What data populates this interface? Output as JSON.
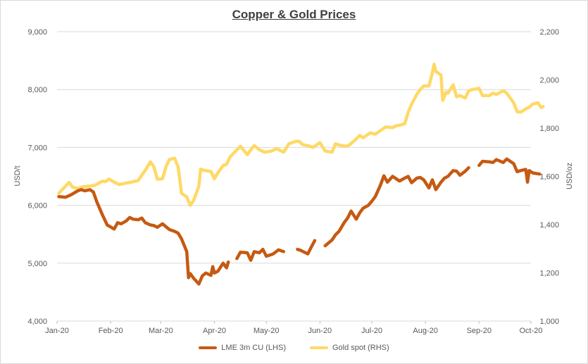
{
  "chart_data": {
    "type": "line",
    "title": "Copper & Gold Prices",
    "ylabel_left": "USD/t",
    "ylabel_right": "USD/oz",
    "ylim_left": [
      4000,
      9000
    ],
    "ylim_right": [
      1000,
      2200
    ],
    "yticks_left": [
      "4,000",
      "5,000",
      "6,000",
      "7,000",
      "8,000",
      "9,000"
    ],
    "yticks_right": [
      "1,000",
      "1,200",
      "1,400",
      "1,600",
      "1,800",
      "2,000",
      "2,200"
    ],
    "xticks": [
      "Jan-20",
      "Feb-20",
      "Mar-20",
      "Apr-20",
      "May-20",
      "Jun-20",
      "Jul-20",
      "Aug-20",
      "Sep-20",
      "Oct-20"
    ],
    "grid": true,
    "legend_position": "bottom",
    "series": [
      {
        "name": "LME 3m CU (LHS)",
        "axis": "left",
        "color": "#c55a11",
        "points": [
          [
            "2020-01-02",
            6150
          ],
          [
            "2020-01-06",
            6140
          ],
          [
            "2020-01-09",
            6180
          ],
          [
            "2020-01-13",
            6250
          ],
          [
            "2020-01-15",
            6270
          ],
          [
            "2020-01-17",
            6250
          ],
          [
            "2020-01-20",
            6270
          ],
          [
            "2020-01-22",
            6230
          ],
          [
            "2020-01-24",
            6060
          ],
          [
            "2020-01-27",
            5850
          ],
          [
            "2020-01-30",
            5660
          ],
          [
            "2020-02-03",
            5590
          ],
          [
            "2020-02-05",
            5700
          ],
          [
            "2020-02-07",
            5680
          ],
          [
            "2020-02-10",
            5730
          ],
          [
            "2020-02-12",
            5790
          ],
          [
            "2020-02-14",
            5760
          ],
          [
            "2020-02-17",
            5750
          ],
          [
            "2020-02-19",
            5780
          ],
          [
            "2020-02-21",
            5700
          ],
          [
            "2020-02-24",
            5660
          ],
          [
            "2020-02-26",
            5650
          ],
          [
            "2020-02-28",
            5620
          ],
          [
            "2020-03-02",
            5680
          ],
          [
            "2020-03-04",
            5630
          ],
          [
            "2020-03-06",
            5580
          ],
          [
            "2020-03-09",
            5550
          ],
          [
            "2020-03-11",
            5520
          ],
          [
            "2020-03-13",
            5420
          ],
          [
            "2020-03-16",
            5200
          ],
          [
            "2020-03-17",
            4750
          ],
          [
            "2020-03-18",
            4820
          ],
          [
            "2020-03-20",
            4740
          ],
          [
            "2020-03-23",
            4640
          ],
          [
            "2020-03-25",
            4780
          ],
          [
            "2020-03-27",
            4830
          ],
          [
            "2020-03-30",
            4790
          ],
          [
            "2020-03-31",
            4940
          ],
          [
            "2020-04-01",
            4830
          ],
          [
            "2020-04-03",
            4860
          ],
          [
            "2020-04-06",
            5000
          ],
          [
            "2020-04-08",
            4920
          ],
          [
            "2020-04-09",
            5020
          ],
          [
            null,
            null
          ],
          [
            "2020-04-14",
            5080
          ],
          [
            "2020-04-16",
            5190
          ],
          [
            "2020-04-20",
            5180
          ],
          [
            "2020-04-22",
            5050
          ],
          [
            "2020-04-24",
            5200
          ],
          [
            "2020-04-27",
            5180
          ],
          [
            "2020-04-29",
            5240
          ],
          [
            "2020-05-01",
            5120
          ],
          [
            "2020-05-05",
            5160
          ],
          [
            "2020-05-08",
            5230
          ],
          [
            "2020-05-11",
            5200
          ],
          [
            null,
            null
          ],
          [
            "2020-05-19",
            5240
          ],
          [
            "2020-05-21",
            5220
          ],
          [
            "2020-05-25",
            5160
          ],
          [
            "2020-05-27",
            5280
          ],
          [
            "2020-05-29",
            5390
          ],
          [
            null,
            null
          ],
          [
            "2020-06-04",
            5300
          ],
          [
            "2020-06-08",
            5400
          ],
          [
            "2020-06-10",
            5490
          ],
          [
            "2020-06-12",
            5550
          ],
          [
            "2020-06-15",
            5700
          ],
          [
            "2020-06-17",
            5780
          ],
          [
            "2020-06-19",
            5900
          ],
          [
            "2020-06-22",
            5760
          ],
          [
            "2020-06-24",
            5870
          ],
          [
            "2020-06-26",
            5950
          ],
          [
            "2020-06-29",
            6000
          ],
          [
            "2020-07-01",
            6070
          ],
          [
            "2020-07-03",
            6150
          ],
          [
            "2020-07-06",
            6350
          ],
          [
            "2020-07-08",
            6510
          ],
          [
            "2020-07-10",
            6400
          ],
          [
            "2020-07-13",
            6500
          ],
          [
            "2020-07-15",
            6460
          ],
          [
            "2020-07-17",
            6420
          ],
          [
            "2020-07-20",
            6470
          ],
          [
            "2020-07-22",
            6500
          ],
          [
            "2020-07-24",
            6390
          ],
          [
            "2020-07-27",
            6470
          ],
          [
            "2020-07-29",
            6480
          ],
          [
            "2020-07-31",
            6440
          ],
          [
            "2020-08-03",
            6300
          ],
          [
            "2020-08-05",
            6440
          ],
          [
            "2020-08-07",
            6270
          ],
          [
            "2020-08-10",
            6400
          ],
          [
            "2020-08-12",
            6470
          ],
          [
            "2020-08-14",
            6500
          ],
          [
            "2020-08-17",
            6600
          ],
          [
            "2020-08-19",
            6590
          ],
          [
            "2020-08-21",
            6520
          ],
          [
            "2020-08-24",
            6590
          ],
          [
            "2020-08-26",
            6650
          ],
          [
            null,
            null
          ],
          [
            "2020-09-01",
            6690
          ],
          [
            "2020-09-03",
            6760
          ],
          [
            "2020-09-07",
            6750
          ],
          [
            "2020-09-09",
            6740
          ],
          [
            "2020-09-11",
            6790
          ],
          [
            "2020-09-15",
            6740
          ],
          [
            "2020-09-17",
            6800
          ],
          [
            "2020-09-21",
            6720
          ],
          [
            "2020-09-23",
            6580
          ],
          [
            "2020-09-25",
            6600
          ],
          [
            "2020-09-28",
            6620
          ],
          [
            "2020-09-29",
            6400
          ],
          [
            "2020-09-30",
            6600
          ],
          [
            "2020-10-02",
            6560
          ],
          [
            "2020-10-06",
            6540
          ]
        ]
      },
      {
        "name": "Gold spot (RHS)",
        "axis": "right",
        "color": "#ffd966",
        "points": [
          [
            "2020-01-02",
            1530
          ],
          [
            "2020-01-06",
            1560
          ],
          [
            "2020-01-08",
            1575
          ],
          [
            "2020-01-10",
            1555
          ],
          [
            "2020-01-13",
            1550
          ],
          [
            "2020-01-16",
            1557
          ],
          [
            "2020-01-20",
            1560
          ],
          [
            "2020-01-23",
            1563
          ],
          [
            "2020-01-27",
            1580
          ],
          [
            "2020-01-29",
            1578
          ],
          [
            "2020-01-31",
            1589
          ],
          [
            "2020-02-03",
            1576
          ],
          [
            "2020-02-06",
            1566
          ],
          [
            "2020-02-10",
            1572
          ],
          [
            "2020-02-13",
            1576
          ],
          [
            "2020-02-17",
            1583
          ],
          [
            "2020-02-19",
            1605
          ],
          [
            "2020-02-21",
            1625
          ],
          [
            "2020-02-24",
            1660
          ],
          [
            "2020-02-26",
            1640
          ],
          [
            "2020-02-28",
            1588
          ],
          [
            "2020-03-02",
            1590
          ],
          [
            "2020-03-04",
            1640
          ],
          [
            "2020-03-06",
            1670
          ],
          [
            "2020-03-09",
            1675
          ],
          [
            "2020-03-11",
            1640
          ],
          [
            "2020-03-13",
            1530
          ],
          [
            "2020-03-16",
            1515
          ],
          [
            "2020-03-18",
            1480
          ],
          [
            "2020-03-20",
            1500
          ],
          [
            "2020-03-23",
            1560
          ],
          [
            "2020-03-24",
            1630
          ],
          [
            "2020-03-26",
            1625
          ],
          [
            "2020-03-30",
            1620
          ],
          [
            "2020-04-01",
            1590
          ],
          [
            "2020-04-03",
            1615
          ],
          [
            "2020-04-06",
            1645
          ],
          [
            "2020-04-08",
            1650
          ],
          [
            "2020-04-10",
            1680
          ],
          [
            "2020-04-14",
            1710
          ],
          [
            "2020-04-16",
            1725
          ],
          [
            "2020-04-20",
            1690
          ],
          [
            "2020-04-22",
            1710
          ],
          [
            "2020-04-24",
            1728
          ],
          [
            "2020-04-27",
            1710
          ],
          [
            "2020-04-30",
            1700
          ],
          [
            "2020-05-04",
            1705
          ],
          [
            "2020-05-07",
            1715
          ],
          [
            "2020-05-11",
            1700
          ],
          [
            "2020-05-14",
            1735
          ],
          [
            "2020-05-18",
            1745
          ],
          [
            "2020-05-20",
            1745
          ],
          [
            "2020-05-22",
            1732
          ],
          [
            "2020-05-26",
            1725
          ],
          [
            "2020-05-28",
            1720
          ],
          [
            "2020-06-01",
            1740
          ],
          [
            "2020-06-04",
            1705
          ],
          [
            "2020-06-08",
            1700
          ],
          [
            "2020-06-10",
            1735
          ],
          [
            "2020-06-12",
            1730
          ],
          [
            "2020-06-16",
            1725
          ],
          [
            "2020-06-18",
            1730
          ],
          [
            "2020-06-22",
            1755
          ],
          [
            "2020-06-24",
            1770
          ],
          [
            "2020-06-26",
            1760
          ],
          [
            "2020-06-30",
            1780
          ],
          [
            "2020-07-03",
            1775
          ],
          [
            "2020-07-07",
            1795
          ],
          [
            "2020-07-09",
            1805
          ],
          [
            "2020-07-13",
            1802
          ],
          [
            "2020-07-15",
            1810
          ],
          [
            "2020-07-17",
            1812
          ],
          [
            "2020-07-20",
            1818
          ],
          [
            "2020-07-22",
            1865
          ],
          [
            "2020-07-24",
            1900
          ],
          [
            "2020-07-27",
            1940
          ],
          [
            "2020-07-29",
            1960
          ],
          [
            "2020-07-31",
            1975
          ],
          [
            "2020-08-03",
            1975
          ],
          [
            "2020-08-05",
            2030
          ],
          [
            "2020-08-06",
            2065
          ],
          [
            "2020-08-07",
            2035
          ],
          [
            "2020-08-10",
            2020
          ],
          [
            "2020-08-11",
            1915
          ],
          [
            "2020-08-13",
            1950
          ],
          [
            "2020-08-14",
            1945
          ],
          [
            "2020-08-17",
            1980
          ],
          [
            "2020-08-19",
            1930
          ],
          [
            "2020-08-21",
            1935
          ],
          [
            "2020-08-24",
            1925
          ],
          [
            "2020-08-26",
            1955
          ],
          [
            "2020-08-28",
            1960
          ],
          [
            "2020-09-01",
            1965
          ],
          [
            "2020-09-03",
            1935
          ],
          [
            "2020-09-07",
            1935
          ],
          [
            "2020-09-09",
            1945
          ],
          [
            "2020-09-11",
            1940
          ],
          [
            "2020-09-15",
            1955
          ],
          [
            "2020-09-17",
            1945
          ],
          [
            "2020-09-21",
            1905
          ],
          [
            "2020-09-23",
            1868
          ],
          [
            "2020-09-25",
            1866
          ],
          [
            "2020-09-28",
            1880
          ],
          [
            "2020-09-30",
            1887
          ],
          [
            "2020-10-02",
            1900
          ],
          [
            "2020-10-05",
            1905
          ],
          [
            "2020-10-07",
            1885
          ],
          [
            "2020-10-08",
            1890
          ]
        ]
      }
    ]
  }
}
